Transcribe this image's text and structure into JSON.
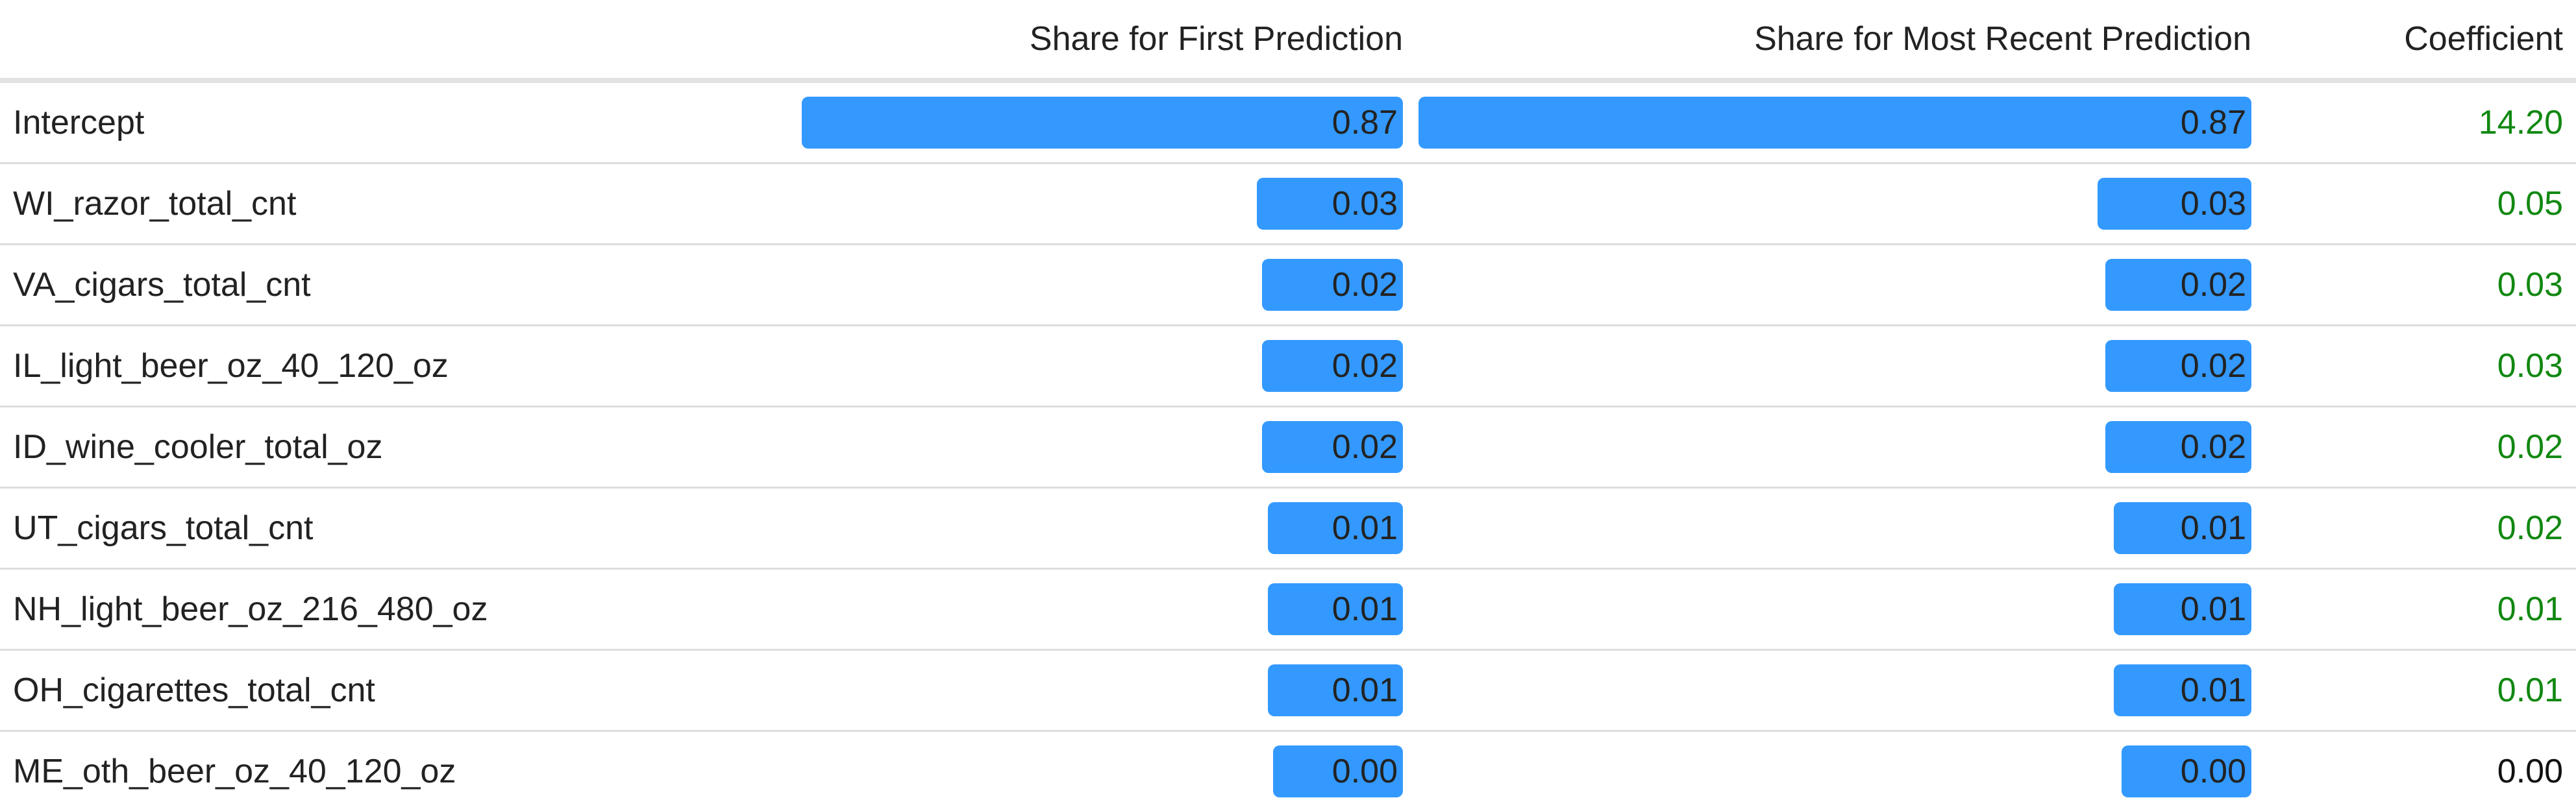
{
  "chart_data": {
    "type": "table",
    "columns": [
      "",
      "Share for First Prediction",
      "Share for Most Recent Prediction",
      "Coefficient"
    ],
    "bar_color": "#3399ff",
    "positive_coefficient_color": "#118811",
    "rows": [
      {
        "name": "Intercept",
        "first_share": 0.87,
        "first_label": "0.87",
        "recent_share": 0.87,
        "recent_label": "0.87",
        "coefficient": 14.2,
        "coefficient_label": "14.20"
      },
      {
        "name": "WI_razor_total_cnt",
        "first_share": 0.03,
        "first_label": "0.03",
        "recent_share": 0.03,
        "recent_label": "0.03",
        "coefficient": 0.05,
        "coefficient_label": "0.05"
      },
      {
        "name": "VA_cigars_total_cnt",
        "first_share": 0.02,
        "first_label": "0.02",
        "recent_share": 0.02,
        "recent_label": "0.02",
        "coefficient": 0.03,
        "coefficient_label": "0.03"
      },
      {
        "name": "IL_light_beer_oz_40_120_oz",
        "first_share": 0.02,
        "first_label": "0.02",
        "recent_share": 0.02,
        "recent_label": "0.02",
        "coefficient": 0.03,
        "coefficient_label": "0.03"
      },
      {
        "name": "ID_wine_cooler_total_oz",
        "first_share": 0.02,
        "first_label": "0.02",
        "recent_share": 0.02,
        "recent_label": "0.02",
        "coefficient": 0.02,
        "coefficient_label": "0.02"
      },
      {
        "name": "UT_cigars_total_cnt",
        "first_share": 0.01,
        "first_label": "0.01",
        "recent_share": 0.01,
        "recent_label": "0.01",
        "coefficient": 0.02,
        "coefficient_label": "0.02"
      },
      {
        "name": "NH_light_beer_oz_216_480_oz",
        "first_share": 0.01,
        "first_label": "0.01",
        "recent_share": 0.01,
        "recent_label": "0.01",
        "coefficient": 0.01,
        "coefficient_label": "0.01"
      },
      {
        "name": "OH_cigarettes_total_cnt",
        "first_share": 0.01,
        "first_label": "0.01",
        "recent_share": 0.01,
        "recent_label": "0.01",
        "coefficient": 0.01,
        "coefficient_label": "0.01"
      },
      {
        "name": "ME_oth_beer_oz_40_120_oz",
        "first_share": 0.0,
        "first_label": "0.00",
        "recent_share": 0.0,
        "recent_label": "0.00",
        "coefficient": 0.0,
        "coefficient_label": "0.00"
      }
    ]
  }
}
